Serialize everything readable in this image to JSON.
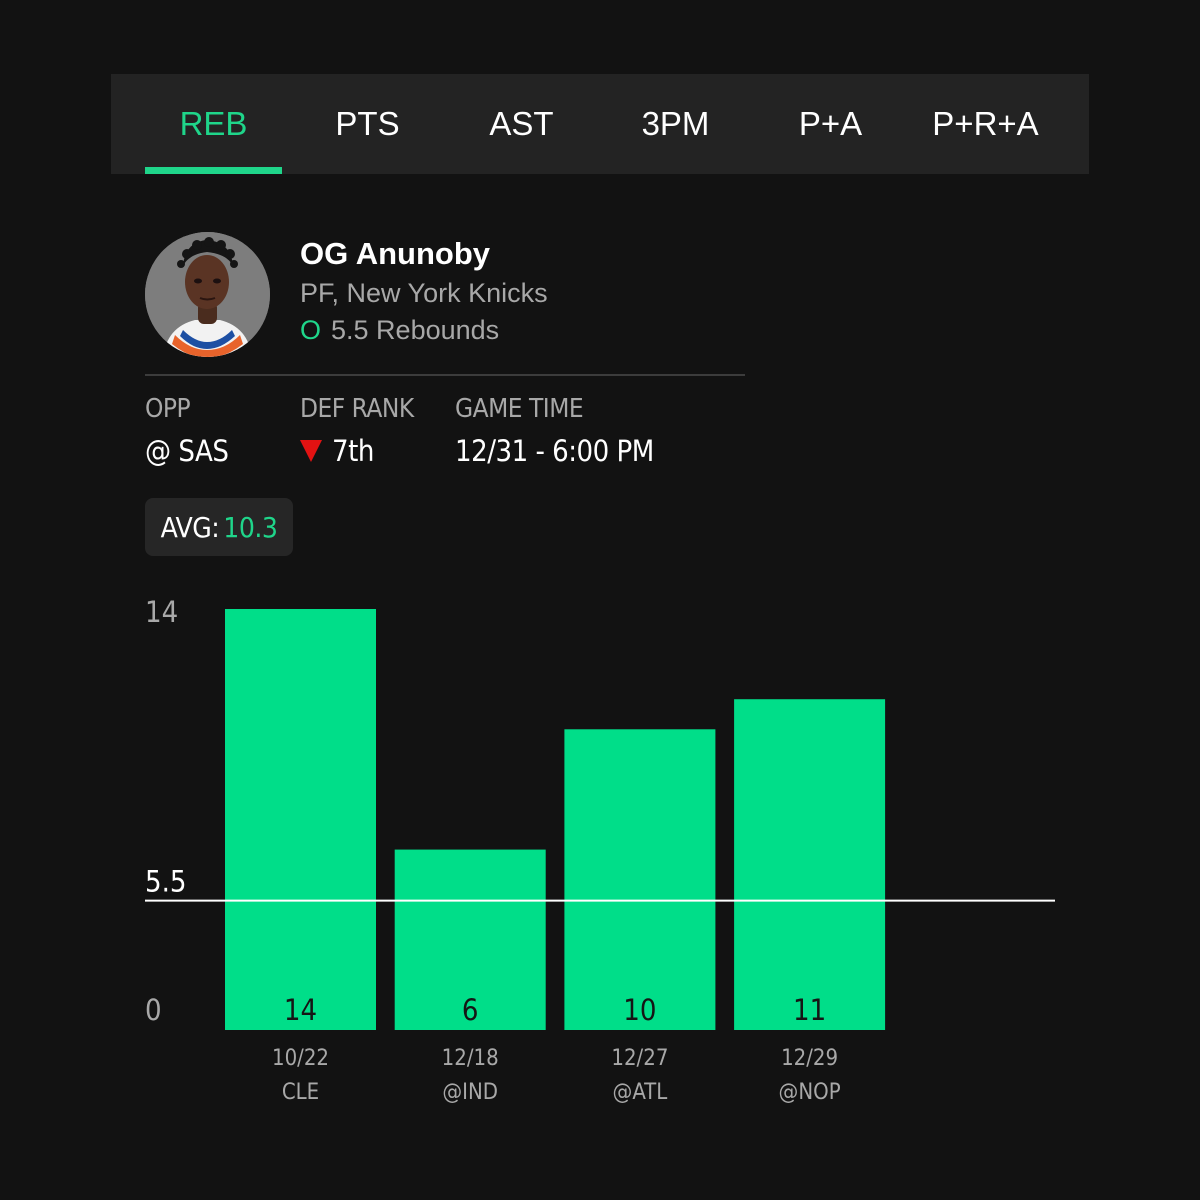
{
  "tabs": [
    {
      "label": "REB",
      "active": true
    },
    {
      "label": "PTS",
      "active": false
    },
    {
      "label": "AST",
      "active": false
    },
    {
      "label": "3PM",
      "active": false
    },
    {
      "label": "P+A",
      "active": false
    },
    {
      "label": "P+R+A",
      "active": false
    }
  ],
  "player": {
    "name": "OG Anunoby",
    "position_team": "PF, New York Knicks",
    "line_marker": "O",
    "line_text": "5.5 Rebounds"
  },
  "info": {
    "opp_label": "OPP",
    "opp_value": "@ SAS",
    "def_rank_label": "DEF RANK",
    "def_rank_value": "7th",
    "game_time_label": "GAME TIME",
    "game_time_value": "12/31 - 6:00 PM"
  },
  "avg": {
    "label": "AVG:",
    "value": "10.3"
  },
  "colors": {
    "accent": "#1fd58a",
    "background": "#121212",
    "panel": "#232323",
    "down": "#e31212"
  },
  "chart_data": {
    "type": "bar",
    "categories": [
      "10/22 CLE",
      "12/18 @IND",
      "12/27 @ATL",
      "12/29 @NOP"
    ],
    "dates": [
      "10/22",
      "12/18",
      "12/27",
      "12/29"
    ],
    "opponents": [
      "CLE",
      "@IND",
      "@ATL",
      "@NOP"
    ],
    "values": [
      14,
      6,
      10,
      11
    ],
    "value_labels": [
      "14",
      "6",
      "10",
      "11"
    ],
    "y_ticks": [
      "14",
      "5.5",
      "0"
    ],
    "line_value": 5.5,
    "ylim": [
      0,
      14
    ],
    "bar_color": "#00de89",
    "line_color": "#ffffff"
  }
}
